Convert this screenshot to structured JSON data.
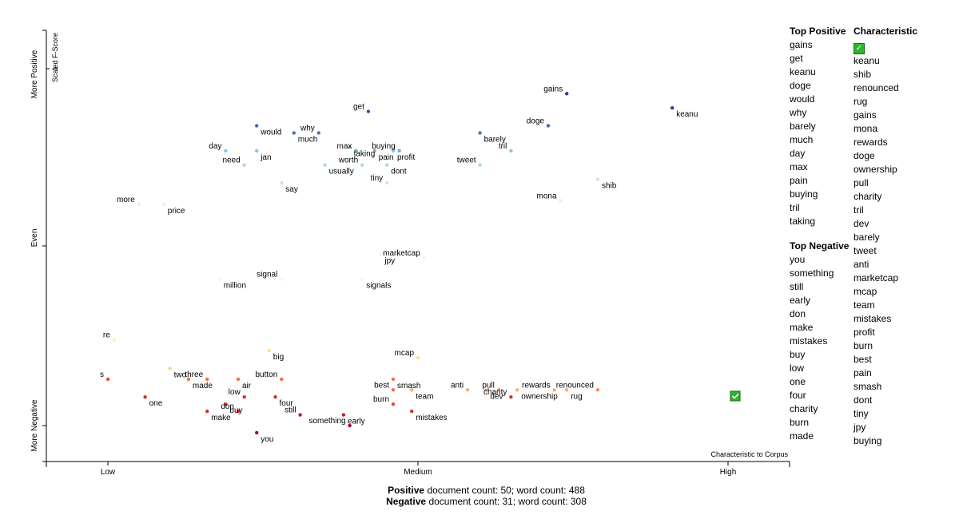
{
  "chart_data": {
    "type": "scatter",
    "x_axis": {
      "title": "Characteristic to Corpus",
      "ticks": [
        "Low",
        "Medium",
        "High"
      ]
    },
    "y_axis": {
      "title": "Scaled F-Score",
      "ticks": [
        "More Negative",
        "Even",
        "More Positive"
      ],
      "top_tick": "1"
    },
    "points": [
      {
        "term": "gains",
        "x": 0.74,
        "y": 0.93,
        "color": "#313695"
      },
      {
        "term": "keanu",
        "x": 0.91,
        "y": 0.89,
        "color": "#313695"
      },
      {
        "term": "get",
        "x": 0.42,
        "y": 0.88,
        "color": "#3a4fa1"
      },
      {
        "term": "would",
        "x": 0.24,
        "y": 0.84,
        "color": "#4265ac"
      },
      {
        "term": "doge",
        "x": 0.71,
        "y": 0.84,
        "color": "#4265ac"
      },
      {
        "term": "much",
        "x": 0.3,
        "y": 0.82,
        "color": "#4575b4"
      },
      {
        "term": "why",
        "x": 0.34,
        "y": 0.82,
        "color": "#4575b4"
      },
      {
        "term": "barely",
        "x": 0.6,
        "y": 0.82,
        "color": "#4575b4"
      },
      {
        "term": "max",
        "x": 0.4,
        "y": 0.77,
        "color": "#74add1"
      },
      {
        "term": "pain",
        "x": 0.43,
        "y": 0.77,
        "color": "#74add1"
      },
      {
        "term": "buying",
        "x": 0.47,
        "y": 0.77,
        "color": "#74add1"
      },
      {
        "term": "taking",
        "x": 0.39,
        "y": 0.78,
        "color": "#8fc3dd"
      },
      {
        "term": "day",
        "x": 0.19,
        "y": 0.77,
        "color": "#8fc3dd"
      },
      {
        "term": "jan",
        "x": 0.24,
        "y": 0.77,
        "color": "#8fc3dd"
      },
      {
        "term": "tril",
        "x": 0.65,
        "y": 0.77,
        "color": "#8fc3dd"
      },
      {
        "term": "profit",
        "x": 0.46,
        "y": 0.77,
        "color": "#8fc3dd"
      },
      {
        "term": "need",
        "x": 0.22,
        "y": 0.73,
        "color": "#abd9e9"
      },
      {
        "term": "usually",
        "x": 0.35,
        "y": 0.73,
        "color": "#abd9e9"
      },
      {
        "term": "worth",
        "x": 0.41,
        "y": 0.73,
        "color": "#abd9e9"
      },
      {
        "term": "dont",
        "x": 0.45,
        "y": 0.73,
        "color": "#abd9e9"
      },
      {
        "term": "tweet",
        "x": 0.6,
        "y": 0.73,
        "color": "#abd9e9"
      },
      {
        "term": "say",
        "x": 0.28,
        "y": 0.68,
        "color": "#c6e4ef"
      },
      {
        "term": "tiny",
        "x": 0.45,
        "y": 0.68,
        "color": "#c6e4ef"
      },
      {
        "term": "shib",
        "x": 0.79,
        "y": 0.69,
        "color": "#c6e4ef"
      },
      {
        "term": "more",
        "x": 0.05,
        "y": 0.62,
        "color": "#e0f3f8"
      },
      {
        "term": "price",
        "x": 0.09,
        "y": 0.62,
        "color": "#e0f3f8"
      },
      {
        "term": "mona",
        "x": 0.73,
        "y": 0.63,
        "color": "#e0f3f8"
      },
      {
        "term": "jpy",
        "x": 0.44,
        "y": 0.48,
        "color": "#e8f5f0"
      },
      {
        "term": "marketcap",
        "x": 0.51,
        "y": 0.47,
        "color": "#e8f5f0"
      },
      {
        "term": "million",
        "x": 0.18,
        "y": 0.41,
        "color": "#fcf7d7"
      },
      {
        "term": "signal",
        "x": 0.28,
        "y": 0.41,
        "color": "#fcf7d7"
      },
      {
        "term": "signals",
        "x": 0.41,
        "y": 0.41,
        "color": "#fcf7d7"
      },
      {
        "term": "re",
        "x": 0.01,
        "y": 0.24,
        "color": "#fff3b8"
      },
      {
        "term": "big",
        "x": 0.26,
        "y": 0.21,
        "color": "#fee090"
      },
      {
        "term": "mcap",
        "x": 0.5,
        "y": 0.19,
        "color": "#fee090"
      },
      {
        "term": "two",
        "x": 0.1,
        "y": 0.16,
        "color": "#fdd384"
      },
      {
        "term": "s",
        "x": 0.0,
        "y": 0.13,
        "color": "#e34a33"
      },
      {
        "term": "made",
        "x": 0.13,
        "y": 0.13,
        "color": "#f46d43"
      },
      {
        "term": "three",
        "x": 0.16,
        "y": 0.13,
        "color": "#f46d43"
      },
      {
        "term": "air",
        "x": 0.21,
        "y": 0.13,
        "color": "#f46d43"
      },
      {
        "term": "button",
        "x": 0.28,
        "y": 0.13,
        "color": "#f46d43"
      },
      {
        "term": "smash",
        "x": 0.46,
        "y": 0.13,
        "color": "#f46d43"
      },
      {
        "term": "best",
        "x": 0.46,
        "y": 0.1,
        "color": "#f46d43"
      },
      {
        "term": "team",
        "x": 0.49,
        "y": 0.1,
        "color": "#fdae61"
      },
      {
        "term": "anti",
        "x": 0.58,
        "y": 0.1,
        "color": "#fdae61"
      },
      {
        "term": "dev",
        "x": 0.61,
        "y": 0.1,
        "color": "#fdae61"
      },
      {
        "term": "pull",
        "x": 0.63,
        "y": 0.1,
        "color": "#fdae61"
      },
      {
        "term": "ownership",
        "x": 0.66,
        "y": 0.1,
        "color": "#fdae61"
      },
      {
        "term": "rewards",
        "x": 0.72,
        "y": 0.1,
        "color": "#fdae61"
      },
      {
        "term": "rug",
        "x": 0.74,
        "y": 0.1,
        "color": "#fdae61"
      },
      {
        "term": "renounced",
        "x": 0.79,
        "y": 0.1,
        "color": "#f88d52"
      },
      {
        "term": "one",
        "x": 0.06,
        "y": 0.08,
        "color": "#d73027"
      },
      {
        "term": "low",
        "x": 0.22,
        "y": 0.08,
        "color": "#d73027"
      },
      {
        "term": "four",
        "x": 0.27,
        "y": 0.08,
        "color": "#d73027"
      },
      {
        "term": "charity",
        "x": 0.65,
        "y": 0.08,
        "color": "#d73027"
      },
      {
        "term": "buy",
        "x": 0.19,
        "y": 0.06,
        "color": "#d73027"
      },
      {
        "term": "burn",
        "x": 0.46,
        "y": 0.06,
        "color": "#e34a33"
      },
      {
        "term": "make",
        "x": 0.16,
        "y": 0.04,
        "color": "#d73027"
      },
      {
        "term": "don",
        "x": 0.21,
        "y": 0.04,
        "color": "#d73027"
      },
      {
        "term": "mistakes",
        "x": 0.49,
        "y": 0.04,
        "color": "#d73027"
      },
      {
        "term": "still",
        "x": 0.31,
        "y": 0.03,
        "color": "#c21c27"
      },
      {
        "term": "early",
        "x": 0.38,
        "y": 0.03,
        "color": "#c21c27"
      },
      {
        "term": "something",
        "x": 0.39,
        "y": 0.0,
        "color": "#a50026"
      },
      {
        "term": "you",
        "x": 0.24,
        "y": -0.02,
        "color": "#a50026"
      }
    ]
  },
  "sidebar": {
    "top_positive": {
      "heading": "Top Positive",
      "items": [
        "gains",
        "get",
        "keanu",
        "doge",
        "would",
        "why",
        "barely",
        "much",
        "day",
        "max",
        "pain",
        "buying",
        "tril",
        "taking"
      ]
    },
    "top_negative": {
      "heading": "Top Negative",
      "items": [
        "you",
        "something",
        "still",
        "early",
        "don",
        "make",
        "mistakes",
        "buy",
        "low",
        "one",
        "four",
        "charity",
        "burn",
        "made"
      ]
    },
    "characteristic": {
      "heading": "Characteristic",
      "items": [
        "keanu",
        "shib",
        "renounced",
        "rug",
        "gains",
        "mona",
        "rewards",
        "doge",
        "ownership",
        "pull",
        "charity",
        "tril",
        "dev",
        "barely",
        "tweet",
        "anti",
        "marketcap",
        "mcap",
        "team",
        "mistakes",
        "profit",
        "burn",
        "best",
        "pain",
        "smash",
        "dont",
        "tiny",
        "jpy",
        "buying"
      ]
    }
  },
  "footer": {
    "positive_label": "Positive",
    "positive_text": " document count: 50; word count: 488",
    "negative_label": "Negative",
    "negative_text": " document count: 31; word count: 308"
  },
  "check_icon": "check-icon"
}
